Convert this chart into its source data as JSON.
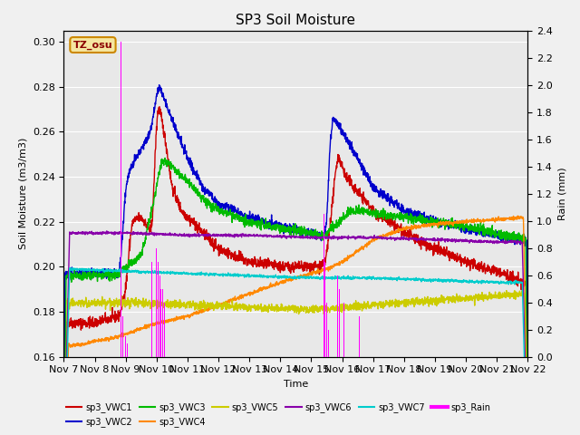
{
  "title": "SP3 Soil Moisture",
  "ylabel_left": "Soil Moisture (m3/m3)",
  "ylabel_right": "Rain (mm)",
  "xlabel": "Time",
  "ylim_left": [
    0.16,
    0.305
  ],
  "ylim_right": [
    0.0,
    2.4
  ],
  "background_color": "#f0f0f0",
  "plot_bg_color": "#e8e8e8",
  "timezone_label": "TZ_osu",
  "colors": {
    "VWC1": "#cc0000",
    "VWC2": "#0000cc",
    "VWC3": "#00bb00",
    "VWC4": "#ff8800",
    "VWC5": "#cccc00",
    "VWC6": "#8800aa",
    "VWC7": "#00cccc",
    "Rain": "#ff00ff"
  },
  "x_ticks": [
    "Nov 7",
    "Nov 8",
    "Nov 9",
    "Nov 10",
    "Nov 11",
    "Nov 12",
    "Nov 13",
    "Nov 14",
    "Nov 15",
    "Nov 16",
    "Nov 17",
    "Nov 18",
    "Nov 19",
    "Nov 20",
    "Nov 21",
    "Nov 22"
  ],
  "rain_times": [
    1.85,
    1.9,
    1.95,
    2.0,
    2.05,
    2.85,
    3.0,
    3.05,
    3.1,
    3.15,
    3.2,
    3.25,
    3.3,
    8.4,
    8.45,
    8.5,
    8.55,
    8.85,
    8.9,
    9.05,
    9.55
  ],
  "rain_vals": [
    2.32,
    0.3,
    0.2,
    0.15,
    0.1,
    0.7,
    0.8,
    0.7,
    0.6,
    0.5,
    0.5,
    0.4,
    0.3,
    1.05,
    0.7,
    0.4,
    0.2,
    0.6,
    0.5,
    0.4,
    0.3
  ]
}
